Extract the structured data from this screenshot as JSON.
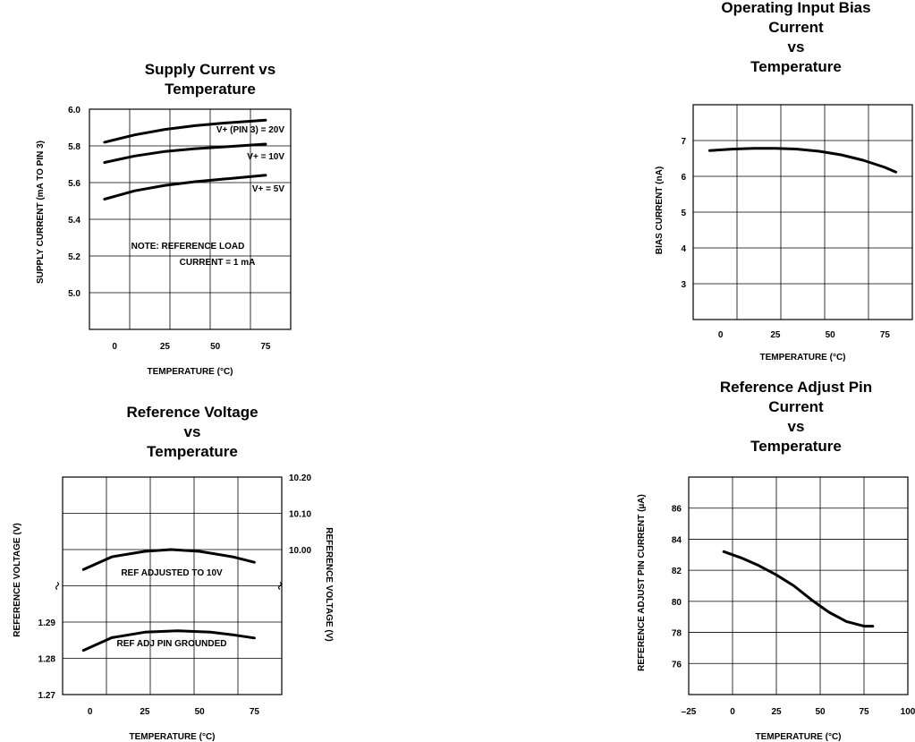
{
  "chart_data": [
    {
      "type": "line",
      "title": "Supply Current vs\nTemperature",
      "xlabel": "TEMPERATURE (°C)",
      "ylabel": "SUPPLY CURRENT (mA TO PIN 3)",
      "x_ticks": [
        "0",
        "25",
        "50",
        "75"
      ],
      "y_ticks": [
        "6.0",
        "5.8",
        "5.6",
        "5.4",
        "5.2",
        "5.0"
      ],
      "xlim": [
        -12.5,
        87.5
      ],
      "ylim": [
        4.8,
        6.0
      ],
      "grid": true,
      "annotations": [
        "NOTE:  REFERENCE LOAD",
        "CURRENT = 1 mA"
      ],
      "series": [
        {
          "name": "V+ (PIN 3) = 20V",
          "x": [
            -5,
            10,
            25,
            40,
            55,
            75
          ],
          "y": [
            5.82,
            5.86,
            5.89,
            5.91,
            5.925,
            5.94
          ]
        },
        {
          "name": "V+ = 10V",
          "x": [
            -5,
            10,
            25,
            40,
            55,
            75
          ],
          "y": [
            5.71,
            5.745,
            5.77,
            5.785,
            5.795,
            5.81
          ]
        },
        {
          "name": "V+ = 5V",
          "x": [
            -5,
            10,
            25,
            40,
            55,
            75
          ],
          "y": [
            5.51,
            5.555,
            5.585,
            5.605,
            5.62,
            5.64
          ]
        }
      ]
    },
    {
      "type": "line",
      "title": "Operating Input Bias\nCurrent\nvs\nTemperature",
      "xlabel": "TEMPERATURE (°C)",
      "ylabel": "BIAS CURRENT (nA)",
      "x_ticks": [
        "0",
        "25",
        "50",
        "75"
      ],
      "y_ticks": [
        "7",
        "6",
        "5",
        "4",
        "3"
      ],
      "xlim": [
        -12.5,
        87.5
      ],
      "ylim": [
        2,
        8
      ],
      "grid": true,
      "series": [
        {
          "name": "",
          "x": [
            -5,
            5,
            15,
            25,
            35,
            45,
            55,
            65,
            75,
            80
          ],
          "y": [
            6.72,
            6.76,
            6.78,
            6.78,
            6.76,
            6.7,
            6.6,
            6.45,
            6.25,
            6.12
          ]
        }
      ]
    },
    {
      "type": "line",
      "title": "Reference Voltage\nvs\nTemperature",
      "xlabel": "TEMPERATURE (°C)",
      "ylabel": "REFERENCE VOLTAGE (V)",
      "ylabel_right": "REFERENCE VOLTAGE (V)",
      "x_ticks": [
        "0",
        "25",
        "50",
        "75"
      ],
      "y_ticks_left": [
        "1.29",
        "1.28",
        "1.27"
      ],
      "y_ticks_right": [
        "10.20",
        "10.10",
        "10.00"
      ],
      "xlim": [
        -12.5,
        87.5
      ],
      "grid": true,
      "annotations": [
        "REF ADJUSTED TO 10V",
        "REF ADJ PIN GROUNDED"
      ],
      "series": [
        {
          "name": "REF ADJUSTED TO 10V",
          "axis": "right",
          "x": [
            -3,
            10,
            25,
            37,
            50,
            65,
            75
          ],
          "y": [
            9.945,
            9.98,
            9.995,
            10.0,
            9.995,
            9.98,
            9.965
          ]
        },
        {
          "name": "REF ADJ PIN GROUNDED",
          "axis": "left",
          "x": [
            -3,
            10,
            25,
            40,
            55,
            65,
            75
          ],
          "y": [
            1.2822,
            1.2857,
            1.2872,
            1.2876,
            1.2872,
            1.2865,
            1.2856
          ]
        }
      ]
    },
    {
      "type": "line",
      "title": "Reference Adjust Pin\nCurrent\nvs\nTemperature",
      "xlabel": "TEMPERATURE (°C)",
      "ylabel": "REFERENCE ADJUST PIN CURRENT (µA)",
      "x_ticks": [
        "–25",
        "0",
        "25",
        "50",
        "75",
        "100"
      ],
      "y_ticks": [
        "86",
        "84",
        "82",
        "80",
        "78",
        "76"
      ],
      "xlim": [
        -25,
        100
      ],
      "ylim": [
        74,
        88
      ],
      "grid": true,
      "series": [
        {
          "name": "",
          "x": [
            -5,
            5,
            15,
            25,
            35,
            45,
            55,
            65,
            75,
            80
          ],
          "y": [
            83.2,
            82.8,
            82.3,
            81.7,
            81.0,
            80.1,
            79.3,
            78.7,
            78.4,
            78.4
          ]
        }
      ]
    }
  ]
}
